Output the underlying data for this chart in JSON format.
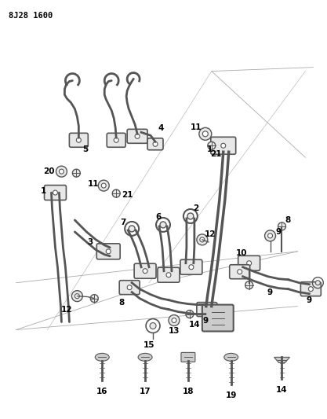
{
  "title": "8J28 1600",
  "bg_color": "#ffffff",
  "fig_width": 4.17,
  "fig_height": 5.33,
  "dpi": 100,
  "line_color": "#555555",
  "fill_color": "#cccccc",
  "fill_light": "#e8e8e8"
}
